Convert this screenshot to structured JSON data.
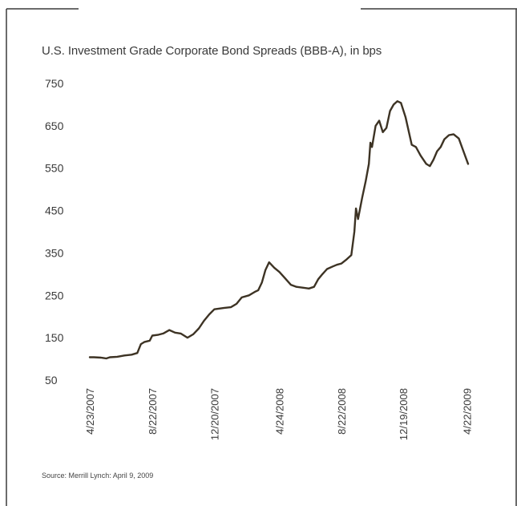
{
  "chart_data": {
    "type": "line",
    "title": "U.S. Investment Grade Corporate Bond Spreads (BBB-A), in bps",
    "xlabel": "",
    "ylabel": "",
    "ylim": [
      50,
      750
    ],
    "yticks": [
      "750",
      "650",
      "550",
      "450",
      "350",
      "250",
      "150",
      "50"
    ],
    "xticks": [
      "4/23/2007",
      "8/22/2007",
      "12/20/2007",
      "4/24/2008",
      "8/22/2008",
      "12/19/2008",
      "4/22/2009"
    ],
    "grid": false,
    "legend": "none",
    "series": [
      {
        "line_color": "#3d3324",
        "points": [
          [
            "2007-04-23",
            104
          ],
          [
            "2007-05-01",
            104
          ],
          [
            "2007-05-15",
            103
          ],
          [
            "2007-05-25",
            101
          ],
          [
            "2007-06-01",
            104
          ],
          [
            "2007-06-15",
            105
          ],
          [
            "2007-06-29",
            108
          ],
          [
            "2007-07-13",
            110
          ],
          [
            "2007-07-24",
            114
          ],
          [
            "2007-07-31",
            135
          ],
          [
            "2007-08-07",
            140
          ],
          [
            "2007-08-17",
            143
          ],
          [
            "2007-08-22",
            155
          ],
          [
            "2007-09-03",
            157
          ],
          [
            "2007-09-12",
            160
          ],
          [
            "2007-09-24",
            168
          ],
          [
            "2007-10-05",
            162
          ],
          [
            "2007-10-16",
            160
          ],
          [
            "2007-10-29",
            150
          ],
          [
            "2007-11-09",
            158
          ],
          [
            "2007-11-20",
            172
          ],
          [
            "2007-11-30",
            190
          ],
          [
            "2007-12-10",
            205
          ],
          [
            "2007-12-20",
            217
          ],
          [
            "2008-01-07",
            220
          ],
          [
            "2008-01-21",
            222
          ],
          [
            "2008-02-01",
            230
          ],
          [
            "2008-02-11",
            245
          ],
          [
            "2008-02-25",
            250
          ],
          [
            "2008-03-07",
            258
          ],
          [
            "2008-03-14",
            262
          ],
          [
            "2008-03-21",
            280
          ],
          [
            "2008-03-28",
            310
          ],
          [
            "2008-04-04",
            328
          ],
          [
            "2008-04-14",
            315
          ],
          [
            "2008-04-24",
            305
          ],
          [
            "2008-05-05",
            290
          ],
          [
            "2008-05-16",
            275
          ],
          [
            "2008-05-27",
            270
          ],
          [
            "2008-06-09",
            268
          ],
          [
            "2008-06-20",
            266
          ],
          [
            "2008-06-30",
            270
          ],
          [
            "2008-07-08",
            288
          ],
          [
            "2008-07-16",
            300
          ],
          [
            "2008-07-25",
            312
          ],
          [
            "2008-08-05",
            318
          ],
          [
            "2008-08-13",
            322
          ],
          [
            "2008-08-22",
            325
          ],
          [
            "2008-09-01",
            335
          ],
          [
            "2008-09-10",
            345
          ],
          [
            "2008-09-16",
            400
          ],
          [
            "2008-09-19",
            455
          ],
          [
            "2008-09-23",
            430
          ],
          [
            "2008-10-01",
            480
          ],
          [
            "2008-10-08",
            520
          ],
          [
            "2008-10-14",
            560
          ],
          [
            "2008-10-17",
            610
          ],
          [
            "2008-10-20",
            600
          ],
          [
            "2008-10-27",
            650
          ],
          [
            "2008-11-03",
            662
          ],
          [
            "2008-11-10",
            635
          ],
          [
            "2008-11-17",
            645
          ],
          [
            "2008-11-24",
            685
          ],
          [
            "2008-12-01",
            700
          ],
          [
            "2008-12-08",
            708
          ],
          [
            "2008-12-15",
            704
          ],
          [
            "2008-12-24",
            670
          ],
          [
            "2009-01-05",
            605
          ],
          [
            "2009-01-13",
            600
          ],
          [
            "2009-01-22",
            580
          ],
          [
            "2009-02-02",
            560
          ],
          [
            "2009-02-09",
            555
          ],
          [
            "2009-02-16",
            570
          ],
          [
            "2009-02-23",
            590
          ],
          [
            "2009-03-02",
            600
          ],
          [
            "2009-03-09",
            618
          ],
          [
            "2009-03-18",
            628
          ],
          [
            "2009-03-27",
            630
          ],
          [
            "2009-04-06",
            620
          ],
          [
            "2009-04-15",
            590
          ],
          [
            "2009-04-24",
            560
          ]
        ]
      }
    ]
  },
  "source_note": "Source: Merrill Lynch: April 9, 2009"
}
